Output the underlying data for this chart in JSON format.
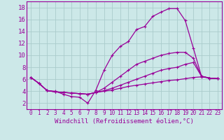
{
  "background_color": "#cce8e8",
  "grid_color": "#aacccc",
  "line_color": "#990099",
  "xlabel": "Windchill (Refroidissement éolien,°C)",
  "xlabel_fontsize": 6.5,
  "ytick_fontsize": 6.5,
  "xtick_fontsize": 5.5,
  "ylim": [
    1.0,
    19.0
  ],
  "xlim": [
    -0.5,
    23.5
  ],
  "yticks": [
    2,
    4,
    6,
    8,
    10,
    12,
    14,
    16,
    18
  ],
  "xticks": [
    0,
    1,
    2,
    3,
    4,
    5,
    6,
    7,
    8,
    9,
    10,
    11,
    12,
    13,
    14,
    15,
    16,
    17,
    18,
    19,
    20,
    21,
    22,
    23
  ],
  "curves": [
    {
      "x": [
        0,
        1,
        2,
        3,
        4,
        5,
        6,
        7,
        8,
        9,
        10,
        11,
        12,
        13,
        14,
        15,
        16,
        17,
        18,
        19,
        20,
        21,
        22,
        23
      ],
      "y": [
        6.3,
        5.3,
        4.1,
        4.0,
        3.5,
        3.1,
        3.0,
        2.0,
        4.2,
        7.5,
        10.0,
        11.5,
        12.3,
        14.3,
        14.8,
        16.5,
        17.2,
        17.8,
        17.8,
        15.8,
        11.2,
        6.5,
        6.2,
        6.1
      ]
    },
    {
      "x": [
        0,
        1,
        2,
        3,
        4,
        5,
        6,
        7,
        8,
        9,
        10,
        11,
        12,
        13,
        14,
        15,
        16,
        17,
        18,
        19,
        20,
        21,
        22,
        23
      ],
      "y": [
        6.3,
        5.3,
        4.1,
        3.9,
        3.8,
        3.7,
        3.6,
        3.5,
        3.8,
        4.5,
        5.5,
        6.5,
        7.5,
        8.5,
        9.0,
        9.5,
        10.0,
        10.3,
        10.5,
        10.5,
        9.5,
        6.5,
        6.2,
        6.1
      ]
    },
    {
      "x": [
        0,
        1,
        2,
        3,
        4,
        5,
        6,
        7,
        8,
        9,
        10,
        11,
        12,
        13,
        14,
        15,
        16,
        17,
        18,
        19,
        20,
        21,
        22,
        23
      ],
      "y": [
        6.3,
        5.3,
        4.1,
        3.9,
        3.8,
        3.7,
        3.6,
        3.5,
        3.8,
        4.1,
        4.5,
        5.0,
        5.5,
        6.0,
        6.5,
        7.0,
        7.5,
        7.8,
        8.0,
        8.5,
        8.8,
        6.5,
        6.2,
        6.1
      ]
    },
    {
      "x": [
        0,
        1,
        2,
        3,
        4,
        5,
        6,
        7,
        8,
        9,
        10,
        11,
        12,
        13,
        14,
        15,
        16,
        17,
        18,
        19,
        20,
        21,
        22,
        23
      ],
      "y": [
        6.3,
        5.3,
        4.1,
        3.9,
        3.8,
        3.7,
        3.6,
        3.5,
        3.8,
        4.0,
        4.2,
        4.5,
        4.8,
        5.0,
        5.2,
        5.4,
        5.6,
        5.8,
        5.9,
        6.1,
        6.3,
        6.4,
        6.2,
        6.1
      ]
    }
  ]
}
